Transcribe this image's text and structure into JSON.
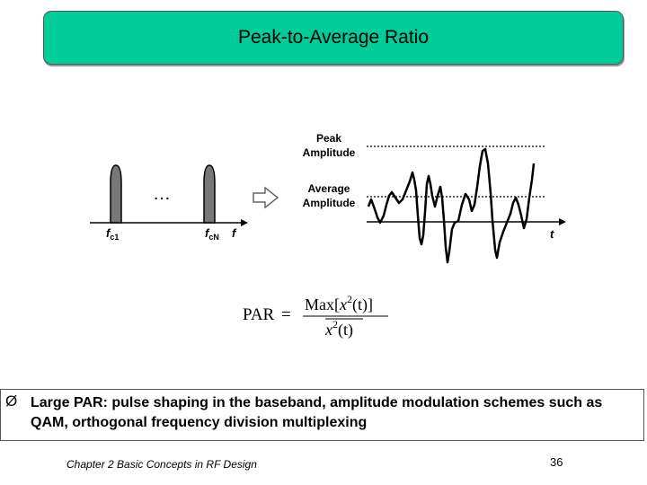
{
  "slide": {
    "title": "Peak-to-Average Ratio",
    "bullet_marker": "Ø",
    "bullet_text": "Large PAR: pulse shaping in the baseband, amplitude modulation schemes such as QAM, orthogonal frequency division multiplexing",
    "footer": "Chapter 2 Basic Concepts in RF Design",
    "page_number": "36"
  },
  "figure": {
    "spectrum": {
      "ellipsis": "…",
      "f_label": "f",
      "fc1_label": "f",
      "fc1_sub": "c1",
      "fcN_label": "f",
      "fcN_sub": "cN"
    },
    "time_domain": {
      "peak_label_1": "Peak",
      "peak_label_2": "Amplitude",
      "avg_label_1": "Average",
      "avg_label_2": "Amplitude",
      "t_label": "t"
    },
    "formula": {
      "lhs": "PAR",
      "eq": "=",
      "num_max": "Max",
      "num_x": "x",
      "num_exp": "2",
      "num_t": "(t)",
      "den_x": "x",
      "den_exp": "2",
      "den_t": "(t)"
    }
  }
}
